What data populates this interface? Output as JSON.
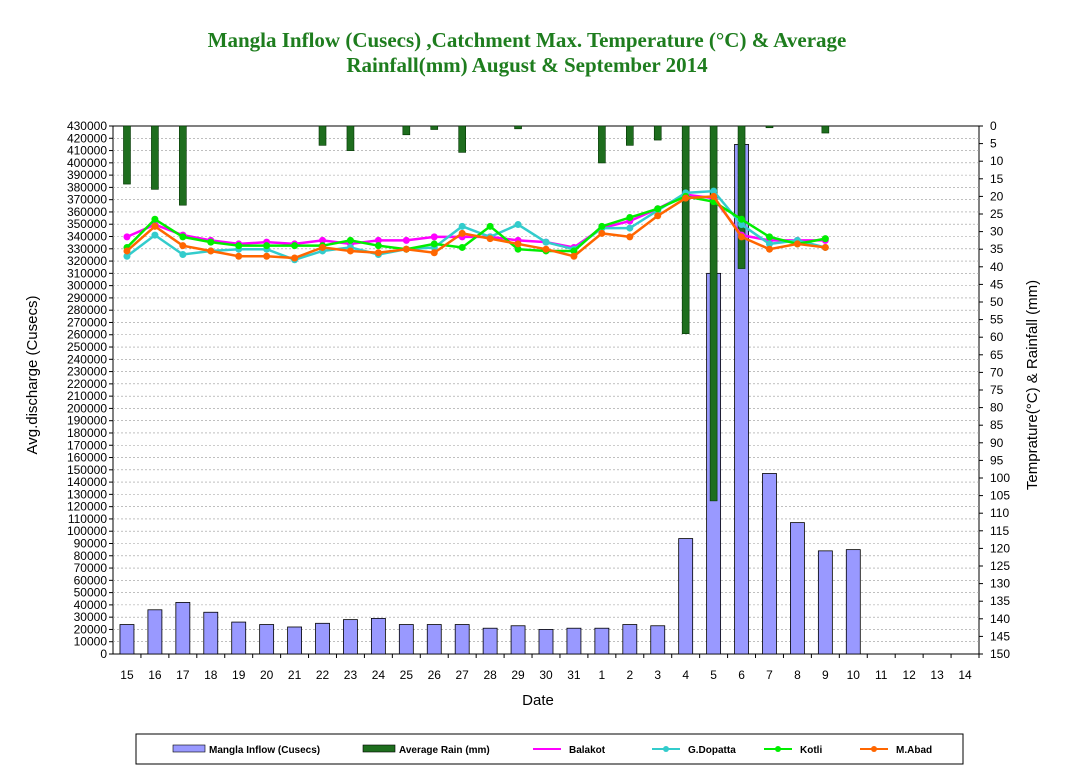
{
  "chart_data": {
    "type": "bar",
    "title_line1": "Mangla Inflow (Cusecs) ,Catchment Max. Temperature (°C) & Average",
    "title_line2": "Rainfall(mm)      August & September 2014",
    "xlabel": "Date",
    "ylabel_left": "Avg.discharge (Cusecs)",
    "ylabel_right": "Temprature(°C) & Rainfall (mm)",
    "ylim_left": [
      0,
      430000
    ],
    "ylim_right": [
      0,
      150
    ],
    "right_axis_inverted": true,
    "grid": "horizontal dashed",
    "legend_position": "bottom",
    "categories": [
      "15",
      "16",
      "17",
      "18",
      "19",
      "20",
      "21",
      "22",
      "23",
      "24",
      "25",
      "26",
      "27",
      "28",
      "29",
      "30",
      "31",
      "1",
      "2",
      "3",
      "4",
      "5",
      "6",
      "7",
      "8",
      "9",
      "10",
      "11",
      "12",
      "13",
      "14"
    ],
    "series": [
      {
        "name": "Mangla Inflow (Cusecs)",
        "kind": "bar",
        "axis": "left",
        "color": "#9999ff",
        "values": [
          24000,
          36000,
          42000,
          34000,
          26000,
          24000,
          22000,
          25000,
          28000,
          29000,
          24000,
          24000,
          24000,
          21000,
          23000,
          20000,
          21000,
          21000,
          24000,
          23000,
          94000,
          310000,
          415000,
          147000,
          107000,
          84000,
          85000,
          null,
          null,
          null,
          null
        ]
      },
      {
        "name": "Average Rain (mm)",
        "kind": "bar",
        "axis": "right",
        "color": "#1e6e1e",
        "values": [
          16.5,
          18,
          22.5,
          0,
          0,
          0,
          0,
          5.5,
          7,
          0,
          2.5,
          1,
          7.5,
          0,
          0.8,
          0,
          0,
          10.5,
          5.5,
          4,
          59,
          106.5,
          40.5,
          0.5,
          0,
          2,
          0,
          0,
          0,
          0,
          0
        ]
      },
      {
        "name": "Balakot",
        "kind": "line",
        "axis": "right",
        "color": "#ff00ff",
        "values": [
          31.5,
          28,
          31,
          32.5,
          33.5,
          33,
          33.5,
          32.5,
          33.5,
          32.5,
          32.5,
          31.5,
          31.5,
          31.5,
          32.5,
          33,
          34.5,
          29,
          27,
          23.5,
          19.5,
          20.5,
          31,
          32.5,
          32.5,
          32.5,
          null,
          null,
          null,
          null,
          null
        ]
      },
      {
        "name": "G.Dopatta",
        "kind": "line",
        "axis": "right",
        "color": "#33cccc",
        "values": [
          37,
          31,
          36.5,
          35.5,
          35,
          35,
          38,
          35.5,
          34.5,
          36.5,
          35,
          34.5,
          28.5,
          31.5,
          28,
          33,
          35,
          29,
          29,
          24,
          19,
          18.5,
          28,
          33.5,
          32.5,
          34.5,
          null,
          null,
          null,
          null,
          null
        ]
      },
      {
        "name": "Kotli",
        "kind": "line",
        "axis": "right",
        "color": "#00ee00",
        "values": [
          34.5,
          26.5,
          31.5,
          33,
          34,
          34,
          34,
          34,
          32.5,
          34,
          35,
          33.5,
          34.5,
          28.5,
          35,
          35.5,
          35.5,
          28.5,
          26,
          23.5,
          20,
          21.5,
          26.5,
          31.5,
          33.5,
          32,
          null,
          null,
          null,
          null,
          null
        ]
      },
      {
        "name": "M.Abad",
        "kind": "line",
        "axis": "right",
        "color": "#ff6600",
        "values": [
          35.5,
          28.5,
          34,
          35.5,
          37,
          37,
          37.5,
          34.5,
          35.5,
          36,
          35,
          36,
          30.5,
          32,
          33.5,
          35,
          37,
          30.5,
          31.5,
          25.5,
          20.5,
          20,
          31.5,
          35,
          33.5,
          34.5,
          null,
          null,
          null,
          null,
          null
        ]
      }
    ]
  }
}
